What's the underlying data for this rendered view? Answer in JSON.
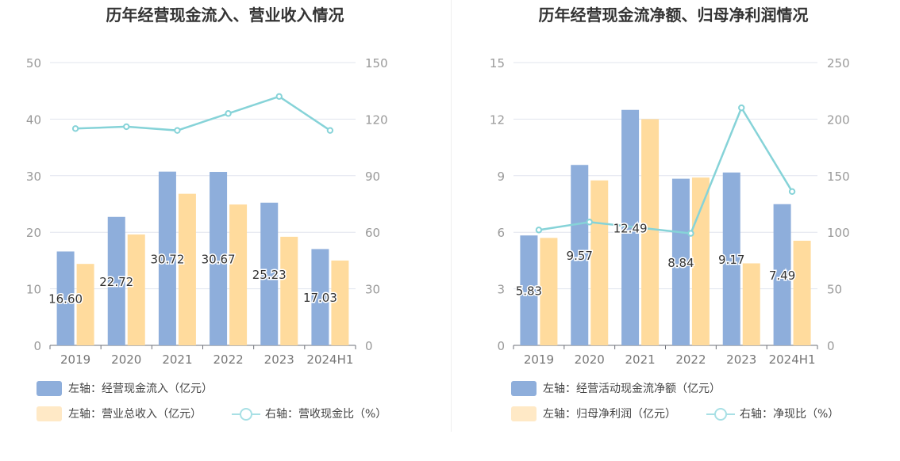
{
  "colors": {
    "bar_primary": "#8eaedb",
    "bar_secondary": "#ffdb9d",
    "line": "#86d3d8",
    "legend_primary": "#8eaedb",
    "legend_secondary": "#ffe9c6",
    "legend_line": "#a8e0e5",
    "grid": "#e0e4ee",
    "axis_text": "#999999"
  },
  "chart_data": [
    {
      "type": "bar",
      "title": "历年经营现金流入、营业收入情况",
      "categories": [
        "2019",
        "2020",
        "2021",
        "2022",
        "2023",
        "2024H1"
      ],
      "left_axis": {
        "min": 0,
        "max": 50,
        "ticks": [
          "0",
          "10",
          "20",
          "30",
          "40",
          "50"
        ]
      },
      "right_axis": {
        "min": 0,
        "max": 150,
        "ticks": [
          "0",
          "30",
          "60",
          "90",
          "120",
          "150"
        ]
      },
      "series": [
        {
          "name": "左轴：经营现金流入（亿元）",
          "axis": "left",
          "kind": "bar",
          "values": [
            16.6,
            22.72,
            30.72,
            30.67,
            25.23,
            17.03
          ],
          "labels": [
            "16.60",
            "22.72",
            "30.72",
            "30.67",
            "25.23",
            "17.03"
          ]
        },
        {
          "name": "左轴：营业总收入（亿元）",
          "axis": "left",
          "kind": "bar",
          "values": [
            14.4,
            19.6,
            26.8,
            24.9,
            19.2,
            15.0
          ]
        },
        {
          "name": "右轴：营收现金比（%）",
          "axis": "right",
          "kind": "line",
          "values": [
            115,
            116,
            114,
            123,
            132,
            114
          ]
        }
      ]
    },
    {
      "type": "bar",
      "title": "历年经营现金流净额、归母净利润情况",
      "categories": [
        "2019",
        "2020",
        "2021",
        "2022",
        "2023",
        "2024H1"
      ],
      "left_axis": {
        "min": 0,
        "max": 15,
        "ticks": [
          "0",
          "3",
          "6",
          "9",
          "12",
          "15"
        ]
      },
      "right_axis": {
        "min": 0,
        "max": 250,
        "ticks": [
          "0",
          "50",
          "100",
          "150",
          "200",
          "250"
        ]
      },
      "series": [
        {
          "name": "左轴：经营活动现金流净额（亿元）",
          "axis": "left",
          "kind": "bar",
          "values": [
            5.83,
            9.57,
            12.49,
            8.84,
            9.17,
            7.49
          ],
          "labels": [
            "5.83",
            "9.57",
            "12.49",
            "8.84",
            "9.17",
            "7.49"
          ]
        },
        {
          "name": "左轴：归母净利润（亿元）",
          "axis": "left",
          "kind": "bar",
          "values": [
            5.7,
            8.75,
            12.0,
            8.9,
            4.35,
            5.55
          ]
        },
        {
          "name": "右轴：净现比（%）",
          "axis": "right",
          "kind": "line",
          "values": [
            102,
            109,
            104,
            99,
            210,
            136
          ]
        }
      ]
    }
  ]
}
